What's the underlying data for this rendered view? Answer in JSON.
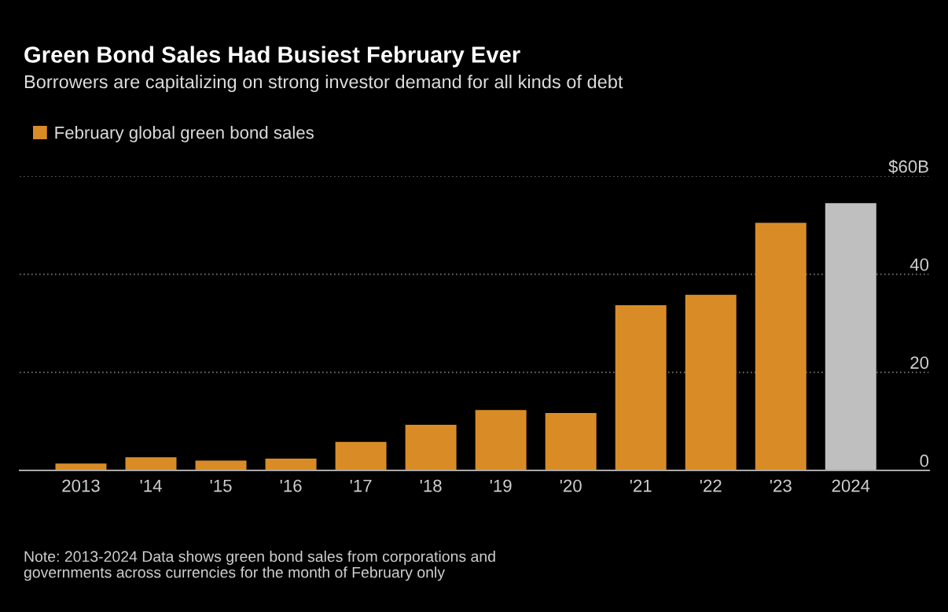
{
  "chart_data": {
    "type": "bar",
    "title": "Green Bond Sales Had Busiest February Ever",
    "subtitle": "Borrowers are capitalizing on strong investor demand for all kinds of debt",
    "categories": [
      "2013",
      "'14",
      "'15",
      "'16",
      "'17",
      "'18",
      "'19",
      "'20",
      "'21",
      "'22",
      "'23",
      "2024"
    ],
    "series": [
      {
        "name": "February global green bond sales",
        "color": "#d98c26",
        "colors": [
          "#d98c26",
          "#d98c26",
          "#d98c26",
          "#d98c26",
          "#d98c26",
          "#d98c26",
          "#d98c26",
          "#d98c26",
          "#d98c26",
          "#d98c26",
          "#d98c26",
          "#bfbfbf"
        ],
        "values": [
          1.4,
          2.7,
          2.0,
          2.4,
          5.8,
          9.3,
          12.3,
          11.7,
          33.7,
          35.8,
          50.5,
          54.5
        ]
      }
    ],
    "ylim": [
      0,
      60
    ],
    "yticks": [
      0,
      20,
      40,
      {
        "value": 60,
        "label": "$60B"
      }
    ],
    "grid": "y",
    "legend": "top left",
    "annotations": [
      "Note: 2013-2024 Data shows green bond sales from corporations and\ngovernments across currencies for the month of February only"
    ]
  }
}
